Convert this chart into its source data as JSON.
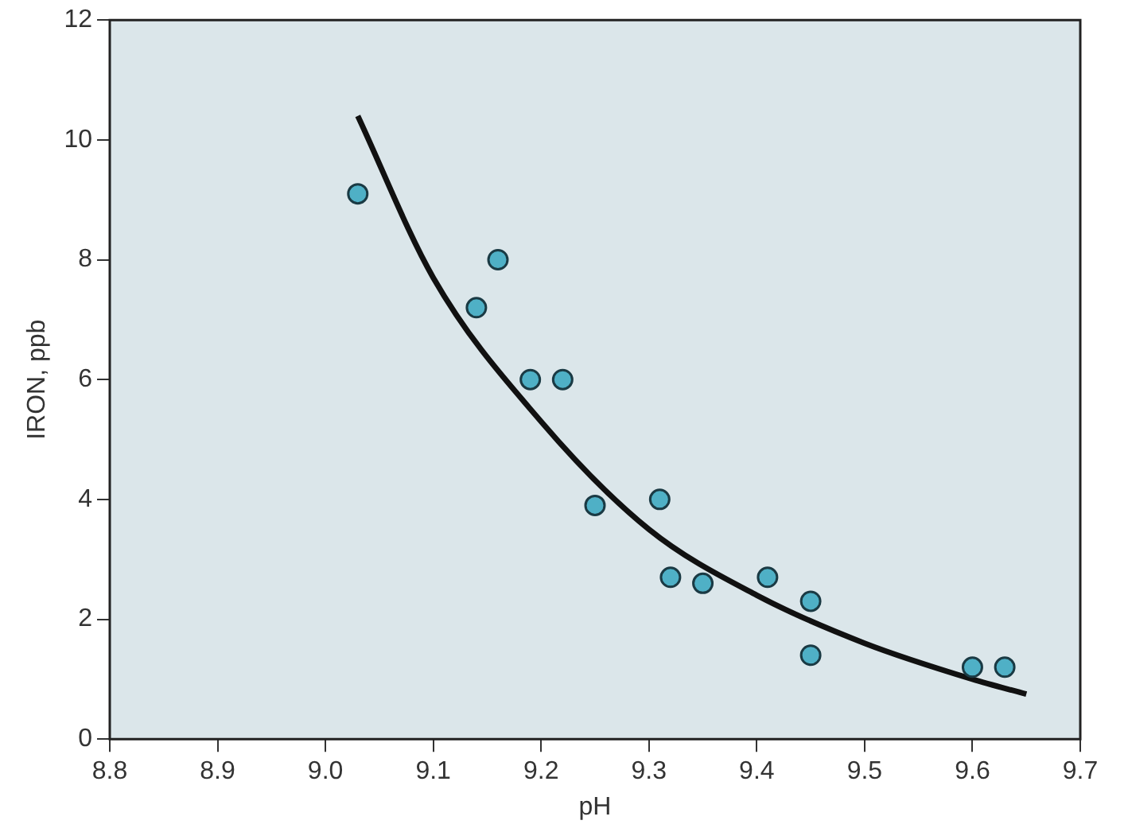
{
  "chart_data": {
    "type": "scatter",
    "xlabel": "pH",
    "ylabel": "IRON, ppb",
    "xlim": [
      8.8,
      9.7
    ],
    "xticks": [
      8.8,
      8.9,
      {
        "value": 9,
        "label": "9.0"
      },
      9.1,
      9.2,
      9.3,
      9.4,
      9.5,
      9.6,
      9.7
    ],
    "ylim": [
      0,
      12
    ],
    "yticks": [
      0,
      2,
      4,
      6,
      8,
      10,
      12
    ],
    "grid": false,
    "legend": false,
    "marker": "circle",
    "series": [
      {
        "color": "#4fb0c6",
        "x": [
          9.03,
          9.14,
          9.16,
          9.19,
          9.22,
          9.25,
          9.31,
          9.32,
          9.35,
          9.41,
          9.45,
          9.45,
          9.6,
          9.63
        ],
        "values": [
          9.1,
          7.2,
          8.0,
          6.0,
          6.0,
          3.9,
          4.0,
          2.7,
          2.6,
          2.7,
          2.3,
          1.4,
          1.2,
          1.2
        ]
      },
      {
        "type": "line",
        "color": "#111111",
        "marker": "none",
        "line_style": "solid",
        "x": [
          9.03,
          9.1,
          9.2,
          9.3,
          9.4,
          9.5,
          9.6,
          9.65
        ],
        "values": [
          10.4,
          7.7,
          5.3,
          3.5,
          2.4,
          1.6,
          1.0,
          0.75
        ]
      }
    ]
  }
}
